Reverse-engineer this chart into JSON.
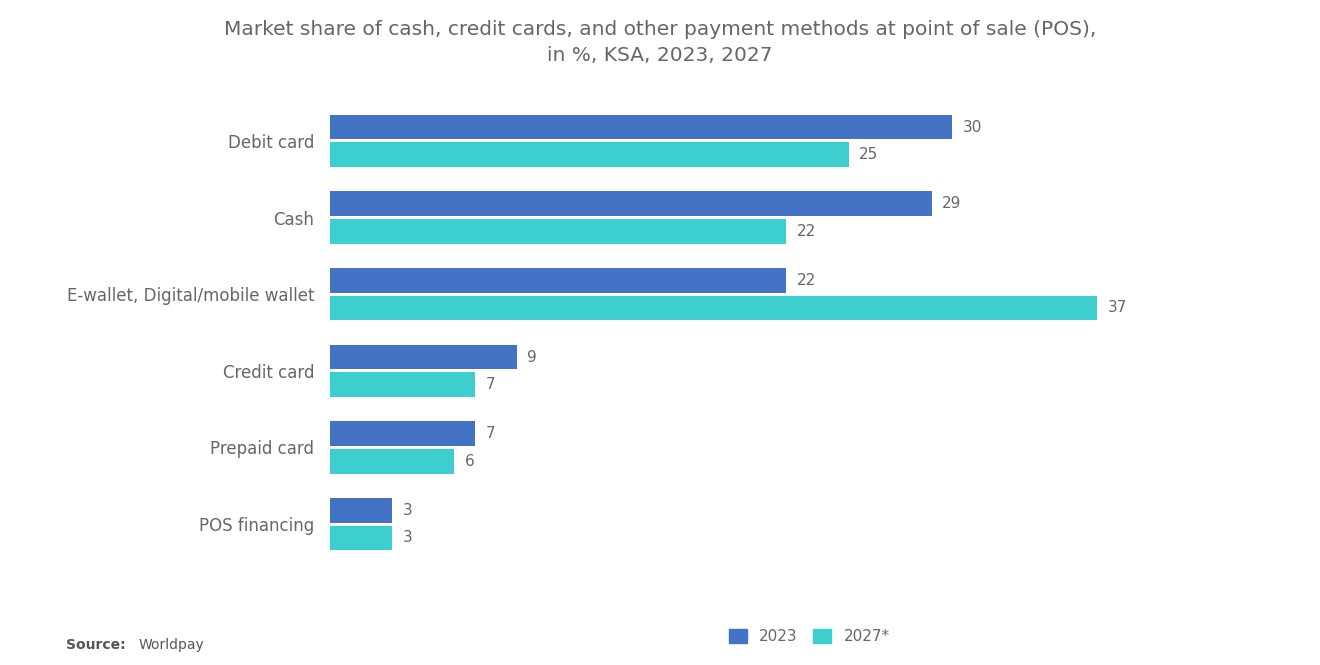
{
  "title": "Market share of cash, credit cards, and other payment methods at point of sale (POS),\nin %, KSA, 2023, 2027",
  "categories": [
    "Debit card",
    "Cash",
    "E-wallet, Digital/mobile wallet",
    "Credit card",
    "Prepaid card",
    "POS financing"
  ],
  "values_2023": [
    30,
    29,
    22,
    9,
    7,
    3
  ],
  "values_2027": [
    25,
    22,
    37,
    7,
    6,
    3
  ],
  "color_2023": "#4472C4",
  "color_2027": "#3DCFCF",
  "background_color": "#ffffff",
  "title_fontsize": 14.5,
  "label_fontsize": 12,
  "bar_label_fontsize": 11,
  "legend_fontsize": 11,
  "legend_labels": [
    "2023",
    "2027*"
  ],
  "xlim": [
    0,
    42
  ]
}
